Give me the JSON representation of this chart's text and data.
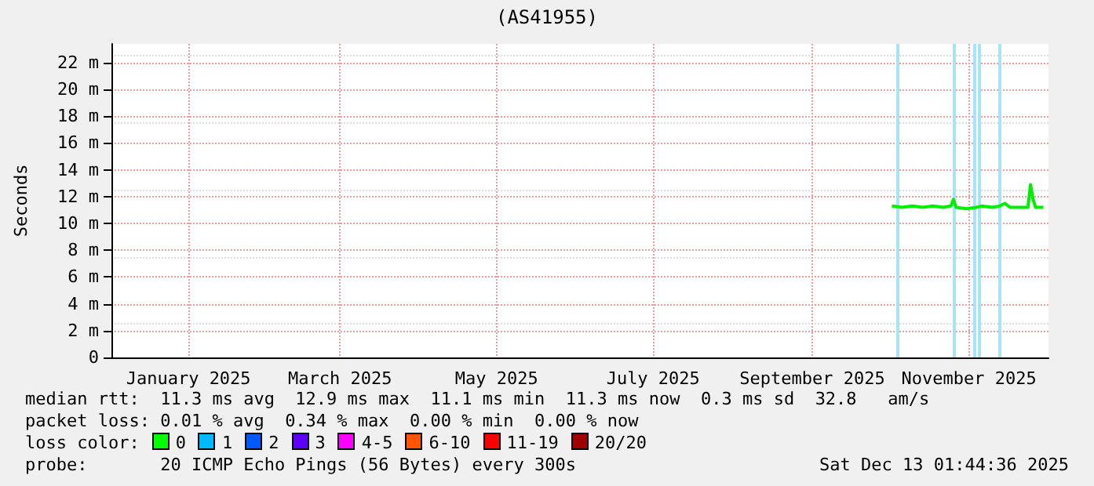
{
  "chart_data": {
    "type": "line",
    "title": "(AS41955)",
    "ylabel": "Seconds",
    "x": [
      "2025-10-02",
      "2025-10-06",
      "2025-10-10",
      "2025-10-14",
      "2025-10-18",
      "2025-10-22",
      "2025-10-25",
      "2025-10-26",
      "2025-10-27",
      "2025-10-31",
      "2025-11-04",
      "2025-11-06",
      "2025-11-10",
      "2025-11-13",
      "2025-11-15",
      "2025-11-17",
      "2025-11-21",
      "2025-11-24",
      "2025-11-25",
      "2025-11-26",
      "2025-11-27",
      "2025-11-30"
    ],
    "series": [
      {
        "color": "#00ee00",
        "values": [
          11.3,
          11.2,
          11.3,
          11.2,
          11.3,
          11.2,
          11.3,
          11.8,
          11.2,
          11.1,
          11.2,
          11.3,
          11.2,
          11.3,
          11.5,
          11.2,
          11.2,
          11.2,
          12.9,
          11.8,
          11.2,
          11.2
        ]
      }
    ],
    "xlim": [
      "2024-12-02",
      "2025-12-02"
    ],
    "xticks": [
      {
        "value": "2025-01-01",
        "label": "January 2025"
      },
      {
        "value": "2025-03-01",
        "label": "March 2025"
      },
      {
        "value": "2025-05-01",
        "label": "May 2025"
      },
      {
        "value": "2025-07-01",
        "label": "July 2025"
      },
      {
        "value": "2025-09-01",
        "label": "September 2025"
      },
      {
        "value": "2025-11-01",
        "label": "November 2025"
      }
    ],
    "ylim": [
      0,
      23.4
    ],
    "yticks": [
      0,
      {
        "value": 2,
        "label": "2 m"
      },
      {
        "value": 4,
        "label": "4 m"
      },
      {
        "value": 6,
        "label": "6 m"
      },
      {
        "value": 8,
        "label": "8 m"
      },
      {
        "value": 10,
        "label": "10 m"
      },
      {
        "value": 12,
        "label": "12 m"
      },
      {
        "value": 14,
        "label": "14 m"
      },
      {
        "value": 16,
        "label": "16 m"
      },
      {
        "value": 18,
        "label": "18 m"
      },
      {
        "value": 20,
        "label": "20 m"
      },
      {
        "value": 22,
        "label": "22 m"
      }
    ],
    "ref_lines": [
      {
        "axis": "x",
        "value": "2025-10-04",
        "label": null,
        "color": "#a8e4f8"
      },
      {
        "axis": "x",
        "value": "2025-10-26",
        "label": null,
        "color": "#a8e4f8"
      },
      {
        "axis": "x",
        "value": "2025-11-03",
        "label": null,
        "color": "#a8e4f8"
      },
      {
        "axis": "x",
        "value": "2025-11-05",
        "label": null,
        "color": "#a8e4f8"
      },
      {
        "axis": "x",
        "value": "2025-11-13",
        "label": null,
        "color": "#a8e4f8"
      }
    ],
    "grid": true,
    "marker": "none",
    "line_style": "solid",
    "annotations": [
      "median rtt:  11.3 ms avg  12.9 ms max  11.1 ms min  11.3 ms now  0.3 ms sd  32.8   am/s",
      "packet loss: 0.01 % avg  0.34 % max  0.00 % min  0.00 % now",
      "loss color:",
      "0",
      "1",
      "2",
      "3",
      "4-5",
      "6-10",
      "11-19",
      "20/20",
      "probe:       20 ICMP Echo Pings (56 Bytes) every 300s",
      "Sat Dec 13 01:44:36 2025"
    ]
  }
}
